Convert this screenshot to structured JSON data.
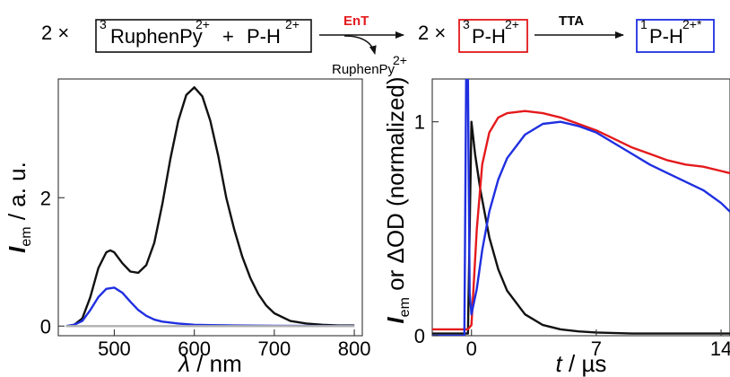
{
  "scheme": {
    "prefix_multiplier": "2 ×",
    "reactant1_sup": "3",
    "reactant1_main": "RuphenPy",
    "reactant1_charge": "2+",
    "plus": "+",
    "reactant2_main": "P-H",
    "reactant2_charge": "2+",
    "arrow1_label": "EnT",
    "arrow1_byproduct_main": "RuphenPy",
    "arrow1_byproduct_charge": "2+",
    "mid_multiplier": "2 ×",
    "intermediate_sup": "3",
    "intermediate_main": "P-H",
    "intermediate_charge": "2+",
    "arrow2_label": "TTA",
    "product_sup": "1",
    "product_main": "P-H",
    "product_charge": "2+*",
    "colors": {
      "black": "#111111",
      "red": "#e41a1c",
      "blue": "#1f2fe0"
    }
  },
  "chart_data": [
    {
      "type": "line",
      "title": "",
      "xlabel": {
        "italic": "λ",
        "rest": " / nm"
      },
      "ylabel": {
        "italic": "I",
        "sub": "em",
        "rest": " / a. u."
      },
      "xlim": [
        430,
        810
      ],
      "ylim": [
        -0.15,
        3.85
      ],
      "xticks": [
        500,
        600,
        700,
        800
      ],
      "xtick_labels": [
        "500",
        "600",
        "700",
        "800"
      ],
      "yticks": [
        0,
        2
      ],
      "ytick_labels": [
        "0",
        "2"
      ],
      "grid": false,
      "series": [
        {
          "color": "#111111",
          "x": [
            440,
            450,
            460,
            470,
            480,
            490,
            495,
            500,
            510,
            520,
            530,
            540,
            550,
            560,
            570,
            580,
            590,
            600,
            610,
            620,
            630,
            640,
            650,
            660,
            670,
            680,
            690,
            700,
            720,
            740,
            760,
            780,
            800
          ],
          "y": [
            0.0,
            0.02,
            0.12,
            0.45,
            0.9,
            1.15,
            1.18,
            1.15,
            0.98,
            0.85,
            0.83,
            0.95,
            1.3,
            1.9,
            2.6,
            3.2,
            3.6,
            3.72,
            3.58,
            3.2,
            2.65,
            2.0,
            1.5,
            1.08,
            0.75,
            0.5,
            0.32,
            0.2,
            0.08,
            0.04,
            0.02,
            0.01,
            0.01
          ]
        },
        {
          "color": "#1f2fe0",
          "x": [
            440,
            450,
            460,
            470,
            480,
            490,
            500,
            510,
            520,
            530,
            540,
            550,
            560,
            580,
            600,
            620,
            650,
            700,
            750,
            800
          ],
          "y": [
            0.0,
            0.02,
            0.08,
            0.25,
            0.45,
            0.58,
            0.6,
            0.52,
            0.38,
            0.25,
            0.16,
            0.1,
            0.07,
            0.04,
            0.02,
            0.015,
            0.01,
            0.005,
            0.003,
            0.002
          ]
        },
        {
          "color": "#b0b0b0",
          "x": [
            440,
            500,
            600,
            700,
            800
          ],
          "y": [
            0.0,
            0.0,
            0.0,
            0.0,
            0.0
          ]
        }
      ]
    },
    {
      "type": "line",
      "title": "",
      "xlabel": {
        "italic": "t",
        "rest": " / µs"
      },
      "ylabel": {
        "italic": "I",
        "sub": "em",
        "rest": " or ΔOD (normalized)"
      },
      "xlim": [
        -2.2,
        14.5
      ],
      "ylim": [
        0,
        1.2
      ],
      "xticks": [
        0,
        7,
        14
      ],
      "xtick_labels": [
        "0",
        "7",
        "14"
      ],
      "yticks": [
        0,
        1
      ],
      "ytick_labels": [
        "0",
        "1"
      ],
      "grid": false,
      "series": [
        {
          "color": "#111111",
          "x": [
            -2.2,
            -0.2,
            0,
            0.2,
            0.5,
            1,
            1.5,
            2,
            3,
            4,
            5,
            6,
            7,
            9,
            11,
            14.5
          ],
          "y": [
            0.01,
            0.01,
            1.0,
            0.85,
            0.68,
            0.46,
            0.31,
            0.21,
            0.1,
            0.05,
            0.03,
            0.02,
            0.015,
            0.01,
            0.01,
            0.01
          ]
        },
        {
          "color": "#e41a1c",
          "x": [
            -2.2,
            -0.2,
            0,
            0.3,
            0.6,
            1,
            1.5,
            2,
            3,
            4,
            5,
            6,
            7,
            8,
            9,
            10,
            11,
            12,
            13,
            14,
            14.5
          ],
          "y": [
            0.03,
            0.03,
            0.05,
            0.5,
            0.8,
            0.95,
            1.02,
            1.04,
            1.05,
            1.04,
            1.02,
            0.99,
            0.96,
            0.92,
            0.88,
            0.85,
            0.82,
            0.8,
            0.79,
            0.77,
            0.76
          ]
        },
        {
          "color": "#1f2fe0",
          "x": [
            -2.2,
            -0.4,
            -0.3,
            -0.2,
            -0.1,
            0,
            0.3,
            0.6,
            1,
            1.5,
            2,
            3,
            4,
            5,
            6,
            7,
            8,
            9,
            10,
            11,
            12,
            13,
            14,
            14.5
          ],
          "y": [
            0.0,
            0.0,
            1.2,
            1.2,
            0.2,
            0.1,
            0.22,
            0.4,
            0.58,
            0.73,
            0.83,
            0.94,
            0.99,
            1.0,
            0.98,
            0.95,
            0.9,
            0.85,
            0.8,
            0.76,
            0.72,
            0.68,
            0.62,
            0.58
          ]
        }
      ]
    }
  ]
}
